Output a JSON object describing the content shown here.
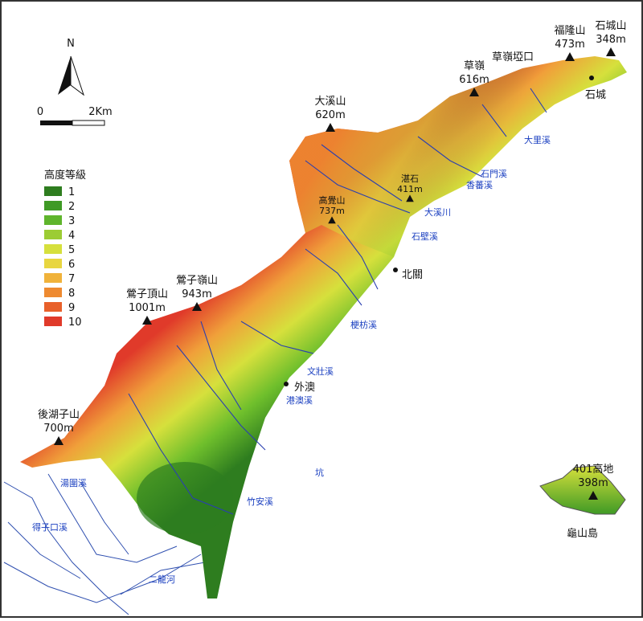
{
  "north": "N",
  "scale": {
    "start": "0",
    "end": "2Km"
  },
  "legend": {
    "title": "高度等級",
    "items": [
      {
        "label": "1",
        "color": "#2e7d1f"
      },
      {
        "label": "2",
        "color": "#3f9a25"
      },
      {
        "label": "3",
        "color": "#5fb52c"
      },
      {
        "label": "4",
        "color": "#9ccc34"
      },
      {
        "label": "5",
        "color": "#d6e03c"
      },
      {
        "label": "6",
        "color": "#e8d640"
      },
      {
        "label": "7",
        "color": "#f0b23a"
      },
      {
        "label": "8",
        "color": "#ee8a30"
      },
      {
        "label": "9",
        "color": "#e8602a"
      },
      {
        "label": "10",
        "color": "#e03a2a"
      }
    ]
  },
  "peaks": [
    {
      "name": "福隆山",
      "height": "473m"
    },
    {
      "name": "石城山",
      "height": "348m"
    },
    {
      "name": "草嶺",
      "height": "616m"
    },
    {
      "name": "大溪山",
      "height": "620m"
    },
    {
      "name": "高覺山",
      "height": "737m"
    },
    {
      "name": "湛石",
      "height": "411m"
    },
    {
      "name": "鶯子頂山",
      "height": "1001m"
    },
    {
      "name": "鶯子嶺山",
      "height": "943m"
    },
    {
      "name": "後湖子山",
      "height": "700m"
    },
    {
      "name": "401高地",
      "height": "398m"
    }
  ],
  "places": [
    "草嶺埡口",
    "石城",
    "北關",
    "外澳",
    "龜山島"
  ],
  "rivers": [
    "大里溪",
    "石門溪",
    "香蕃溪",
    "大溪川",
    "石壁溪",
    "梗枋溪",
    "文壯溪",
    "港澳溪",
    "竹安溪",
    "湯圍溪",
    "得子口溪",
    "二龍河",
    "坑"
  ]
}
